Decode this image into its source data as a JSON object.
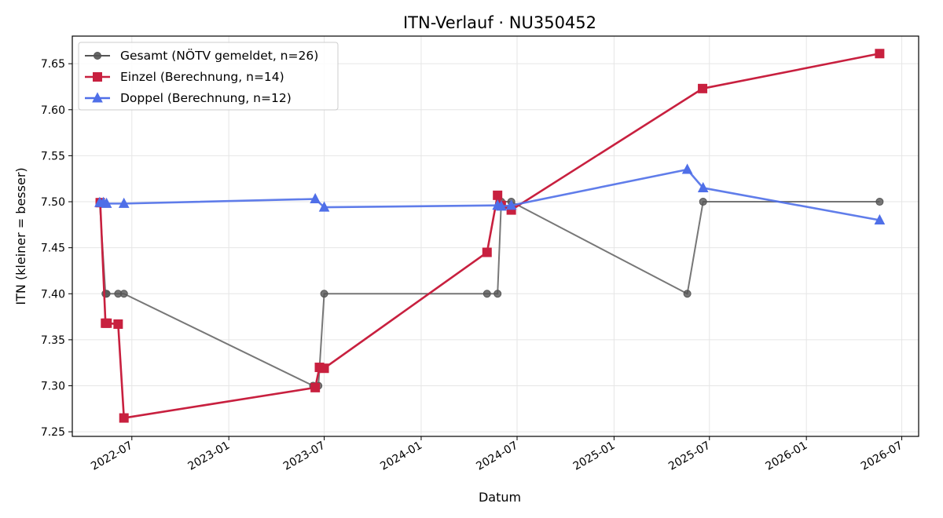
{
  "chart_data": {
    "type": "line",
    "title": "ITN-Verlauf · NU350452",
    "xlabel": "Datum",
    "ylabel": "ITN  (kleiner = besser)",
    "x_axis_type": "date",
    "xlim": [
      "2022-03-10",
      "2026-08-02"
    ],
    "ylim": [
      7.245,
      7.68
    ],
    "x_ticks": [
      "2022-07",
      "2023-01",
      "2023-07",
      "2024-01",
      "2024-07",
      "2025-01",
      "2025-07",
      "2026-01",
      "2026-07"
    ],
    "y_ticks": [
      "7.25",
      "7.30",
      "7.35",
      "7.40",
      "7.45",
      "7.50",
      "7.55",
      "7.60",
      "7.65"
    ],
    "grid": true,
    "legend_position": "top-left",
    "series": [
      {
        "name": "Gesamt (NÖTV gemeldet, n=26)",
        "color": "#555555",
        "marker": "circle",
        "points": [
          [
            "2022-05-01",
            7.5
          ],
          [
            "2022-05-12",
            7.4
          ],
          [
            "2022-05-14",
            7.4
          ],
          [
            "2022-06-05",
            7.4
          ],
          [
            "2022-06-16",
            7.4
          ],
          [
            "2023-06-10",
            7.3
          ],
          [
            "2023-06-20",
            7.3
          ],
          [
            "2023-07-01",
            7.4
          ],
          [
            "2024-05-05",
            7.4
          ],
          [
            "2024-05-25",
            7.4
          ],
          [
            "2024-06-01",
            7.5
          ],
          [
            "2024-06-20",
            7.5
          ],
          [
            "2025-05-20",
            7.4
          ],
          [
            "2025-06-19",
            7.5
          ],
          [
            "2026-05-20",
            7.5
          ]
        ]
      },
      {
        "name": "Einzel (Berechnung, n=14)",
        "color": "#c8203f",
        "marker": "square",
        "points": [
          [
            "2022-05-02",
            7.499
          ],
          [
            "2022-05-12",
            7.368
          ],
          [
            "2022-05-15",
            7.368
          ],
          [
            "2022-06-05",
            7.367
          ],
          [
            "2022-06-16",
            7.265
          ],
          [
            "2023-06-14",
            7.298
          ],
          [
            "2023-06-22",
            7.32
          ],
          [
            "2023-07-01",
            7.319
          ],
          [
            "2024-05-05",
            7.445
          ],
          [
            "2024-05-25",
            7.507
          ],
          [
            "2024-06-01",
            7.496
          ],
          [
            "2024-06-20",
            7.491
          ],
          [
            "2025-06-18",
            7.623
          ],
          [
            "2026-05-20",
            7.661
          ]
        ]
      },
      {
        "name": "Doppel (Berechnung, n=12)",
        "color": "#4f6fe8",
        "marker": "triangle",
        "points": [
          [
            "2022-05-01",
            7.499
          ],
          [
            "2022-05-08",
            7.499
          ],
          [
            "2022-05-14",
            7.498
          ],
          [
            "2022-06-16",
            7.498
          ],
          [
            "2023-06-14",
            7.503
          ],
          [
            "2023-07-01",
            7.494
          ],
          [
            "2024-05-25",
            7.496
          ],
          [
            "2024-06-01",
            7.495
          ],
          [
            "2024-06-20",
            7.496
          ],
          [
            "2025-05-20",
            7.535
          ],
          [
            "2025-06-19",
            7.515
          ],
          [
            "2026-05-20",
            7.48
          ]
        ]
      }
    ]
  }
}
